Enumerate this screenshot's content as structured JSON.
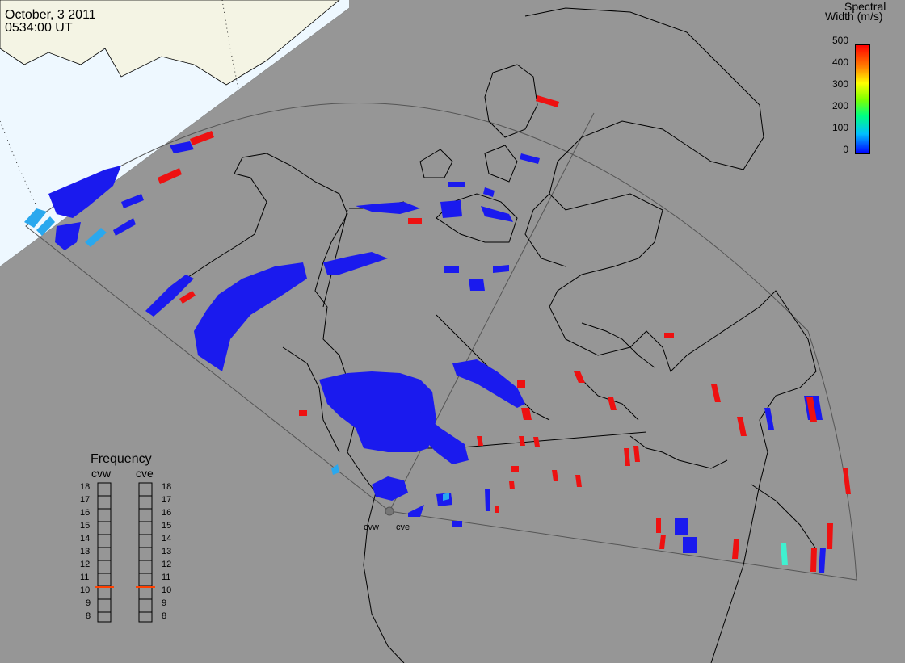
{
  "header": {
    "date": "October, 3 2011",
    "time": "0534:00 UT"
  },
  "colorbar": {
    "title_line1": "Spectral",
    "title_line2": "Width (m/s)",
    "ticks": [
      "500",
      "400",
      "300",
      "200",
      "100",
      "0"
    ],
    "range": [
      0,
      500
    ],
    "stops": [
      "#0000ff",
      "#00bfff",
      "#00ff80",
      "#7fff00",
      "#ffff00",
      "#ff8000",
      "#ff0000"
    ]
  },
  "frequency_panel": {
    "title": "Frequency",
    "radars": [
      {
        "name": "cvw",
        "value_mhz": 10.5
      },
      {
        "name": "cve",
        "value_mhz": 10.5
      }
    ],
    "scale": [
      "18",
      "17",
      "16",
      "15",
      "14",
      "13",
      "12",
      "11",
      "10",
      "9",
      "8"
    ],
    "marker_color": "#ff4000"
  },
  "sites": {
    "west": "cvw",
    "east": "cve"
  },
  "colors": {
    "background": "#969696",
    "daylight": "#eef8ff",
    "land_daylight": "#f4f4e4",
    "coastline": "#000000",
    "scatter_low": "#1a1aee",
    "scatter_high": "#ee1111",
    "scatter_mid": "#3ff0d0"
  }
}
